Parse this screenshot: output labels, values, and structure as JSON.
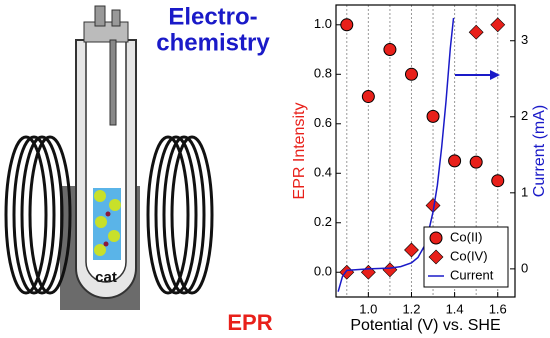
{
  "diagram": {
    "title_lines": [
      "Electro-",
      "chemistry"
    ],
    "label": "EPR",
    "sample_label": "cat"
  },
  "chart_data": {
    "type": "scatter",
    "xlabel": "Potential (V) vs. SHE",
    "ylabel": "EPR Intensity",
    "y2label": "Current (mA)",
    "xlim": [
      0.85,
      1.68
    ],
    "ylim": [
      -0.1,
      1.08
    ],
    "y2lim": [
      -0.37,
      3.47
    ],
    "xticks": [
      {
        "value": 1,
        "label": "1.0"
      },
      1.2,
      1.4,
      1.6
    ],
    "x_grid_lines": [
      0.9,
      1,
      1.1,
      1.2,
      1.3,
      1.4,
      1.5,
      1.6
    ],
    "yticks": [
      {
        "value": 0,
        "label": "0.0"
      },
      0.2,
      0.4,
      0.6,
      0.8,
      {
        "value": 1,
        "label": "1.0"
      }
    ],
    "y2ticks": [
      0,
      1,
      2,
      3
    ],
    "series": [
      {
        "name": "Co(II)",
        "color": "#e8201a",
        "marker": "circle",
        "x": [
          0.9,
          1,
          1.1,
          1.2,
          1.3,
          1.4,
          1.5,
          1.6
        ],
        "values": [
          1.0,
          0.71,
          0.9,
          0.8,
          0.63,
          0.45,
          0.445,
          0.37
        ]
      },
      {
        "name": "Co(IV)",
        "color": "#e8201a",
        "marker": "diamond",
        "x": [
          0.9,
          1,
          1.1,
          1.2,
          1.3,
          1.4,
          1.5,
          1.6
        ],
        "values": [
          0.0,
          0.0,
          0.01,
          0.09,
          0.27,
          null,
          0.97,
          1.0
        ]
      },
      {
        "name": "Current",
        "color": "#1a1ac8",
        "marker": "line",
        "axis": "y2",
        "x": [
          0.86,
          0.88,
          0.9,
          1.0,
          1.1,
          1.15,
          1.2,
          1.23,
          1.26,
          1.28,
          1.3,
          1.32,
          1.34,
          1.36,
          1.38,
          1.395
        ],
        "values": [
          -0.3,
          -0.1,
          -0.02,
          0,
          0.01,
          0.03,
          0.08,
          0.15,
          0.3,
          0.5,
          0.75,
          1.1,
          1.6,
          2.2,
          2.9,
          3.3
        ]
      }
    ],
    "legend": "lower right"
  }
}
